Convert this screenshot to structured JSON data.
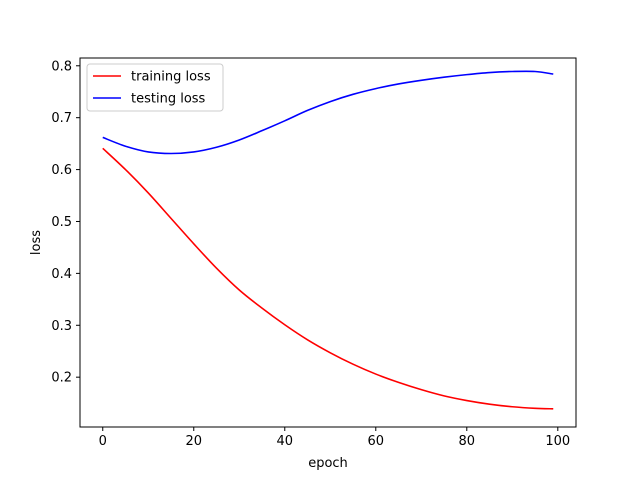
{
  "chart_data": {
    "type": "line",
    "title": "",
    "xlabel": "epoch",
    "ylabel": "loss",
    "xlim": [
      -5,
      104
    ],
    "ylim": [
      0.104,
      0.815
    ],
    "xticks": [
      0,
      20,
      40,
      60,
      80,
      100
    ],
    "yticks": [
      0.2,
      0.3,
      0.4,
      0.5,
      0.6,
      0.7,
      0.8
    ],
    "ytick_labels": [
      "0.2",
      "0.3",
      "0.4",
      "0.5",
      "0.6",
      "0.7",
      "0.8"
    ],
    "grid": false,
    "legend": "upper-left",
    "series": [
      {
        "name": "training loss",
        "color": "#ff0000",
        "x": [
          0,
          5,
          10,
          15,
          20,
          25,
          30,
          35,
          40,
          45,
          50,
          55,
          60,
          65,
          70,
          75,
          80,
          85,
          90,
          95,
          99
        ],
        "y": [
          0.641,
          0.6,
          0.555,
          0.506,
          0.457,
          0.41,
          0.368,
          0.333,
          0.301,
          0.272,
          0.247,
          0.225,
          0.206,
          0.19,
          0.176,
          0.164,
          0.155,
          0.148,
          0.143,
          0.14,
          0.139
        ]
      },
      {
        "name": "testing loss",
        "color": "#0000ff",
        "x": [
          0,
          5,
          10,
          15,
          20,
          25,
          30,
          35,
          40,
          45,
          50,
          55,
          60,
          65,
          70,
          75,
          80,
          85,
          90,
          95,
          99
        ],
        "y": [
          0.662,
          0.645,
          0.634,
          0.631,
          0.634,
          0.643,
          0.657,
          0.675,
          0.694,
          0.714,
          0.731,
          0.745,
          0.756,
          0.765,
          0.772,
          0.778,
          0.783,
          0.787,
          0.789,
          0.789,
          0.784
        ]
      }
    ]
  }
}
